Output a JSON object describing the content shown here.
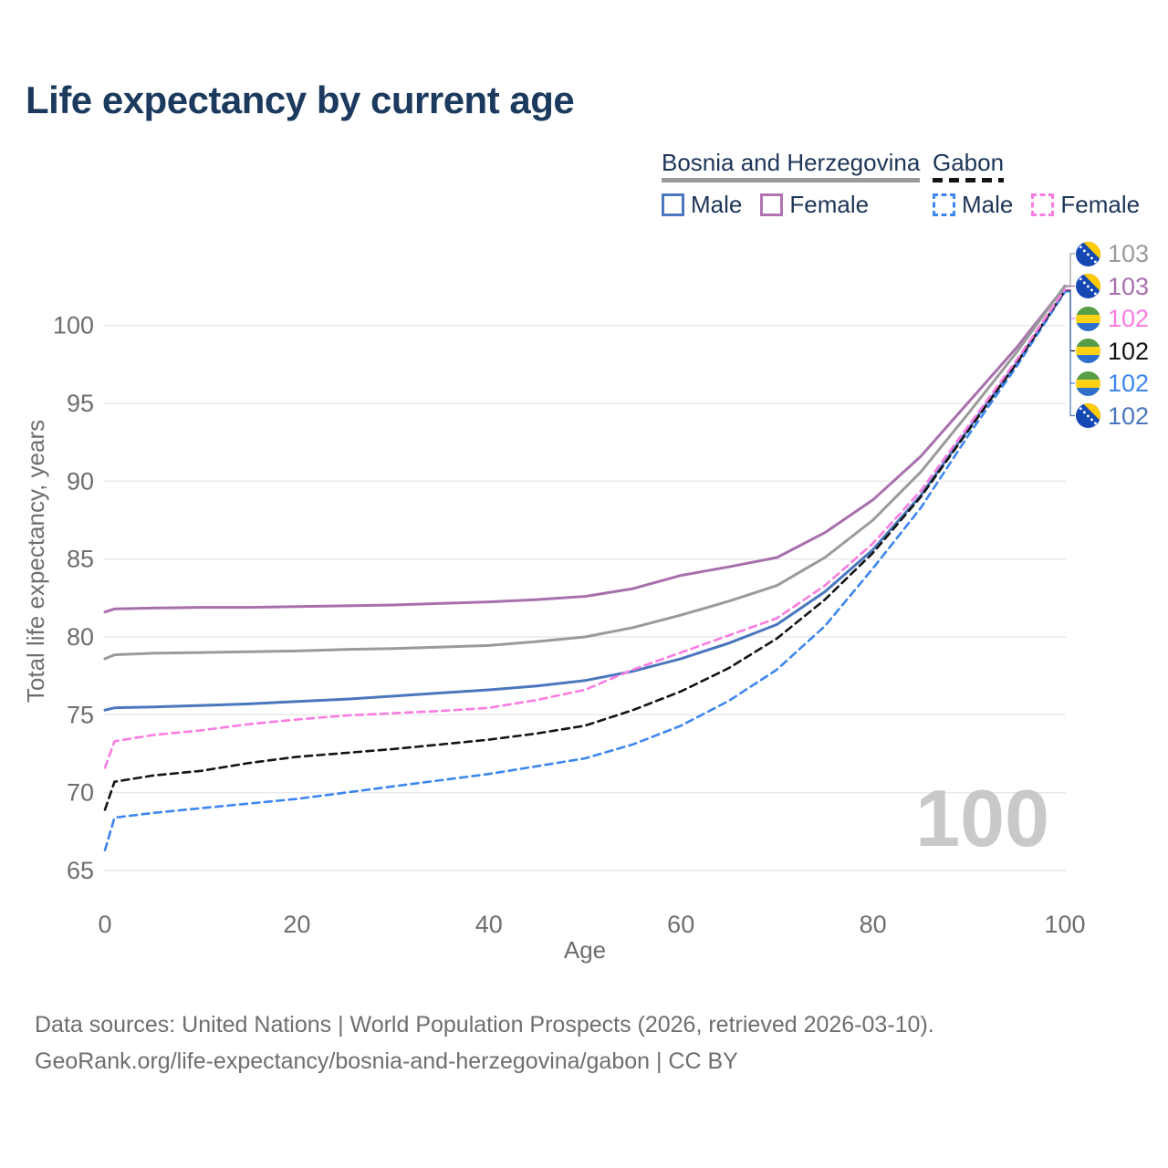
{
  "page": {
    "title": "Life expectancy by current age"
  },
  "legend": {
    "groups": [
      {
        "country": "Bosnia and Herzegovina",
        "underline_color": "#9a9a9a",
        "underline_dashed": false,
        "items": [
          {
            "label": "Male",
            "color": "#4a77bd",
            "dashed": false
          },
          {
            "label": "Female",
            "color": "#b273b2",
            "dashed": false
          }
        ]
      },
      {
        "country": "Gabon",
        "underline_color": "#141414",
        "underline_dashed": true,
        "items": [
          {
            "label": "Male",
            "color": "#3d86ef",
            "dashed": true
          },
          {
            "label": "Female",
            "color": "#fa7ce1",
            "dashed": true
          }
        ]
      }
    ]
  },
  "chart_data": {
    "type": "line",
    "title": "Life expectancy by current age",
    "xlabel": "Age",
    "ylabel": "Total life expectancy, years",
    "x_ticks": [
      0,
      20,
      40,
      60,
      80,
      100
    ],
    "y_ticks": [
      65,
      70,
      75,
      80,
      85,
      90,
      95,
      100
    ],
    "xlim": [
      0,
      100
    ],
    "ylim": [
      65,
      103.5
    ],
    "grid": "horizontal-only",
    "legend_position": "top-right",
    "ages": [
      0,
      1,
      5,
      10,
      15,
      20,
      25,
      30,
      35,
      40,
      45,
      50,
      55,
      60,
      65,
      70,
      75,
      80,
      85,
      90,
      95,
      100
    ],
    "series": [
      {
        "name": "Bosnia and Herzegovina — Female",
        "country": "Bosnia and Herzegovina",
        "sex": "Female",
        "style": "solid",
        "color": "#a86fad",
        "values": [
          81.6,
          81.8,
          81.85,
          81.9,
          81.9,
          81.95,
          82.0,
          82.05,
          82.15,
          82.25,
          82.4,
          82.6,
          83.1,
          83.95,
          84.5,
          85.1,
          86.7,
          88.8,
          91.6,
          95.1,
          98.6,
          102.5
        ]
      },
      {
        "name": "Bosnia and Herzegovina — Total",
        "country": "Bosnia and Herzegovina",
        "sex": "Total",
        "style": "solid",
        "color": "#9a9a9a",
        "values": [
          78.6,
          78.85,
          78.95,
          79.0,
          79.05,
          79.1,
          79.2,
          79.25,
          79.35,
          79.45,
          79.7,
          80.0,
          80.6,
          81.4,
          82.3,
          83.3,
          85.1,
          87.5,
          90.6,
          94.4,
          98.3,
          102.55
        ]
      },
      {
        "name": "Bosnia and Herzegovina — Male",
        "country": "Bosnia and Herzegovina",
        "sex": "Male",
        "style": "solid",
        "color": "#4a77bd",
        "values": [
          75.3,
          75.45,
          75.5,
          75.6,
          75.7,
          75.85,
          76.0,
          76.2,
          76.4,
          76.6,
          76.85,
          77.2,
          77.8,
          78.6,
          79.6,
          80.8,
          82.9,
          85.6,
          89.1,
          93.4,
          97.6,
          102.2
        ]
      },
      {
        "name": "Gabon — Male",
        "country": "Gabon",
        "sex": "Male",
        "style": "dashed",
        "color": "#3d86ef",
        "values": [
          66.3,
          68.4,
          68.7,
          69.0,
          69.3,
          69.6,
          70.0,
          70.4,
          70.8,
          71.2,
          71.7,
          72.2,
          73.1,
          74.3,
          75.9,
          77.9,
          80.7,
          84.4,
          88.3,
          93.0,
          97.4,
          102.15
        ]
      },
      {
        "name": "Gabon — Total",
        "country": "Gabon",
        "sex": "Total",
        "style": "dashed",
        "color": "#141414",
        "values": [
          68.9,
          70.7,
          71.1,
          71.4,
          71.9,
          72.3,
          72.55,
          72.8,
          73.1,
          73.4,
          73.8,
          74.3,
          75.3,
          76.5,
          78.0,
          79.9,
          82.4,
          85.4,
          89.0,
          93.3,
          97.6,
          102.25
        ]
      },
      {
        "name": "Gabon — Female",
        "country": "Gabon",
        "sex": "Female",
        "style": "dashed",
        "color": "#fa7ce1",
        "values": [
          71.6,
          73.3,
          73.7,
          74.0,
          74.4,
          74.7,
          74.95,
          75.1,
          75.25,
          75.45,
          75.95,
          76.6,
          77.9,
          79.0,
          80.1,
          81.2,
          83.3,
          86.0,
          89.4,
          93.6,
          97.8,
          102.3
        ]
      }
    ],
    "end_labels": [
      {
        "series": 1,
        "flag": "bosnia-and-herzegovina-flag",
        "value": "103",
        "color": "#9a9a9a"
      },
      {
        "series": 0,
        "flag": "bosnia-and-herzegovina-flag",
        "value": "103",
        "color": "#a86fad"
      },
      {
        "series": 5,
        "flag": "gabon-flag",
        "value": "102",
        "color": "#fa7ce1"
      },
      {
        "series": 4,
        "flag": "gabon-flag",
        "value": "102",
        "color": "#141414"
      },
      {
        "series": 3,
        "flag": "gabon-flag",
        "value": "102",
        "color": "#3d86ef"
      },
      {
        "series": 2,
        "flag": "bosnia-and-herzegovina-flag",
        "value": "102",
        "color": "#4a77bd"
      }
    ]
  },
  "watermark": "100",
  "footer": {
    "line1": "Data sources: United Nations | World Population Prospects (2026, retrieved 2026-03-10).",
    "line2": "GeoRank.org/life-expectancy/bosnia-and-herzegovina/gabon | CC BY"
  }
}
